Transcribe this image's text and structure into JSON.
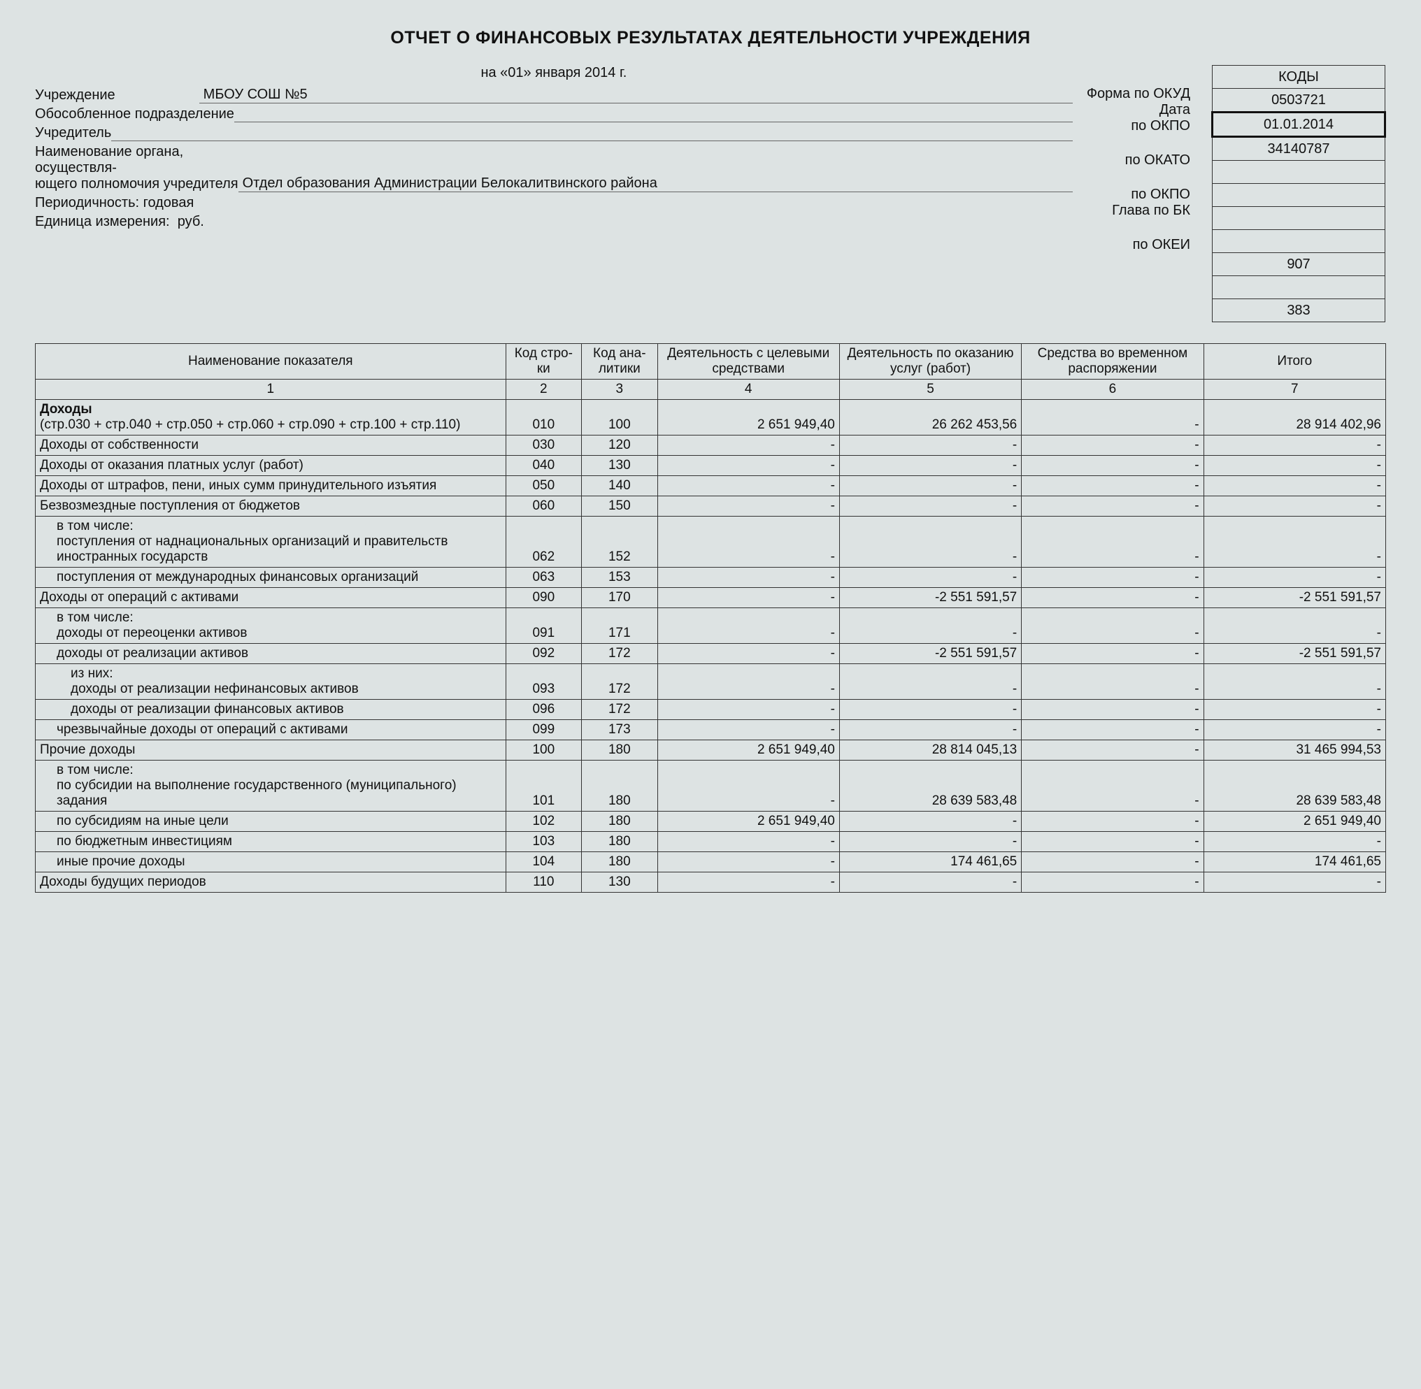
{
  "title": "ОТЧЕТ О ФИНАНСОВЫХ РЕЗУЛЬТАТАХ ДЕЯТЕЛЬНОСТИ УЧРЕЖДЕНИЯ",
  "date_line": "на «01» января 2014 г.",
  "meta": {
    "institution_label": "Учреждение",
    "institution_value": "МБОУ СОШ №5",
    "subdivision_label": "Обособленное подразделение",
    "subdivision_value": "",
    "founder_label": "Учредитель",
    "founder_value": "",
    "authority_label": "Наименование органа,\nосуществля-\nющего полномочия учредителя",
    "authority_value": "Отдел образования Администрации Белокалитвинского района",
    "periodicity_label": "Периодичность: годовая",
    "unit_label": "Единица измерения:  руб."
  },
  "codes": {
    "header": "КОДЫ",
    "labels": {
      "okud": "Форма по ОКУД",
      "date": "Дата",
      "okpo1": "по ОКПО",
      "okato": "по ОКАТО",
      "okpo2": "по ОКПО",
      "glava": "Глава по БК",
      "okei": "по ОКЕИ"
    },
    "values": {
      "okud": "0503721",
      "date": "01.01.2014",
      "okpo1": "34140787",
      "blank1": "",
      "okato": "",
      "blank2": "",
      "okpo2": "",
      "glava": "907",
      "blank3": "",
      "okei": "383"
    }
  },
  "columns": {
    "c1": "Наименование показателя",
    "c2": "Код стро-ки",
    "c3": "Код ана-литики",
    "c4": "Деятельность с целевыми средствами",
    "c5": "Деятельность по оказанию услуг (работ)",
    "c6": "Средства во временном распоряжении",
    "c7": "Итого",
    "n1": "1",
    "n2": "2",
    "n3": "3",
    "n4": "4",
    "n5": "5",
    "n6": "6",
    "n7": "7"
  },
  "rows": [
    {
      "name": "Доходы\n(стр.030 + стр.040 + стр.050 + стр.060 + стр.090 + стр.100 + стр.110)",
      "bold_first": "Доходы",
      "code": "010",
      "ana": "100",
      "v4": "2 651 949,40",
      "v5": "26 262 453,56",
      "v6": "-",
      "v7": "28 914 402,96",
      "indent": 0
    },
    {
      "name": "Доходы от собственности",
      "code": "030",
      "ana": "120",
      "v4": "-",
      "v5": "-",
      "v6": "-",
      "v7": "-",
      "indent": 0
    },
    {
      "name": "Доходы от оказания платных услуг (работ)",
      "code": "040",
      "ana": "130",
      "v4": "-",
      "v5": "-",
      "v6": "-",
      "v7": "-",
      "indent": 0
    },
    {
      "name": "Доходы от штрафов, пени, иных сумм принудительного изъятия",
      "code": "050",
      "ana": "140",
      "v4": "-",
      "v5": "-",
      "v6": "-",
      "v7": "-",
      "indent": 0
    },
    {
      "name": "Безвозмездные поступления от бюджетов",
      "code": "060",
      "ana": "150",
      "v4": "-",
      "v5": "-",
      "v6": "-",
      "v7": "-",
      "indent": 0
    },
    {
      "name": "в том числе:\nпоступления от наднациональных организаций и правительств иностранных государств",
      "code": "062",
      "ana": "152",
      "v4": "-",
      "v5": "-",
      "v6": "-",
      "v7": "-",
      "indent": 1
    },
    {
      "name": "поступления от международных финансовых организаций",
      "code": "063",
      "ana": "153",
      "v4": "-",
      "v5": "-",
      "v6": "-",
      "v7": "-",
      "indent": 1
    },
    {
      "name": "Доходы от операций с активами",
      "code": "090",
      "ana": "170",
      "v4": "-",
      "v5": "-2 551 591,57",
      "v6": "-",
      "v7": "-2 551 591,57",
      "indent": 0
    },
    {
      "name": "в том числе:\nдоходы от переоценки активов",
      "code": "091",
      "ana": "171",
      "v4": "-",
      "v5": "-",
      "v6": "-",
      "v7": "-",
      "indent": 1
    },
    {
      "name": "доходы от реализации активов",
      "code": "092",
      "ana": "172",
      "v4": "-",
      "v5": "-2 551 591,57",
      "v6": "-",
      "v7": "-2 551 591,57",
      "indent": 1
    },
    {
      "name": "из них:\nдоходы от реализации нефинансовых активов",
      "code": "093",
      "ana": "172",
      "v4": "-",
      "v5": "-",
      "v6": "-",
      "v7": "-",
      "indent": 2
    },
    {
      "name": "доходы от реализации финансовых активов",
      "code": "096",
      "ana": "172",
      "v4": "-",
      "v5": "-",
      "v6": "-",
      "v7": "-",
      "indent": 2
    },
    {
      "name": "чрезвычайные доходы от операций с активами",
      "code": "099",
      "ana": "173",
      "v4": "-",
      "v5": "-",
      "v6": "-",
      "v7": "-",
      "indent": 1
    },
    {
      "name": "Прочие доходы",
      "code": "100",
      "ana": "180",
      "v4": "2 651 949,40",
      "v5": "28 814 045,13",
      "v6": "-",
      "v7": "31 465 994,53",
      "indent": 0
    },
    {
      "name": "в том числе:\nпо субсидии на выполнение государственного (муниципального) задания",
      "code": "101",
      "ana": "180",
      "v4": "-",
      "v5": "28 639 583,48",
      "v6": "-",
      "v7": "28 639 583,48",
      "indent": 1
    },
    {
      "name": "по субсидиям на иные цели",
      "code": "102",
      "ana": "180",
      "v4": "2 651 949,40",
      "v5": "-",
      "v6": "-",
      "v7": "2 651 949,40",
      "indent": 1
    },
    {
      "name": "по бюджетным инвестициям",
      "code": "103",
      "ana": "180",
      "v4": "-",
      "v5": "-",
      "v6": "-",
      "v7": "-",
      "indent": 1
    },
    {
      "name": "иные прочие доходы",
      "code": "104",
      "ana": "180",
      "v4": "-",
      "v5": "174 461,65",
      "v6": "-",
      "v7": "174 461,65",
      "indent": 1
    },
    {
      "name": "Доходы будущих периодов",
      "code": "110",
      "ana": "130",
      "v4": "-",
      "v5": "-",
      "v6": "-",
      "v7": "-",
      "indent": 0
    }
  ]
}
